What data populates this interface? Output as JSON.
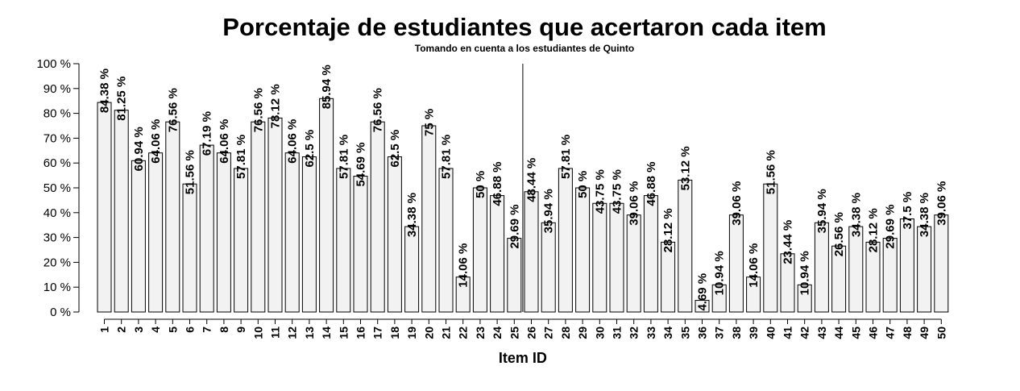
{
  "chart_data": {
    "type": "bar",
    "title": "Porcentaje de estudiantes que acertaron cada item",
    "subtitle": "Tomando en cuenta a los estudiantes de Quinto",
    "xlabel": "Item ID",
    "ylabel": "",
    "ylim": [
      0,
      100
    ],
    "yticks": [
      "0 %",
      "10 %",
      "20 %",
      "30 %",
      "40 %",
      "50 %",
      "60 %",
      "70 %",
      "80 %",
      "90 %",
      "100 %"
    ],
    "categories": [
      "1",
      "2",
      "3",
      "4",
      "5",
      "6",
      "7",
      "8",
      "9",
      "10",
      "11",
      "12",
      "13",
      "14",
      "15",
      "16",
      "17",
      "18",
      "19",
      "20",
      "21",
      "22",
      "23",
      "24",
      "25",
      "26",
      "27",
      "28",
      "29",
      "30",
      "31",
      "32",
      "33",
      "34",
      "35",
      "36",
      "37",
      "38",
      "39",
      "40",
      "41",
      "42",
      "43",
      "44",
      "45",
      "46",
      "47",
      "48",
      "49",
      "50"
    ],
    "values": [
      84.38,
      81.25,
      60.94,
      64.06,
      76.56,
      51.56,
      67.19,
      64.06,
      57.81,
      76.56,
      78.12,
      64.06,
      62.5,
      85.94,
      57.81,
      54.69,
      76.56,
      62.5,
      34.38,
      75,
      57.81,
      14.06,
      50,
      46.88,
      29.69,
      48.44,
      35.94,
      57.81,
      50,
      43.75,
      43.75,
      39.06,
      46.88,
      28.12,
      53.12,
      4.69,
      10.94,
      39.06,
      14.06,
      51.56,
      23.44,
      10.94,
      35.94,
      26.56,
      34.38,
      28.12,
      29.69,
      37.5,
      34.38,
      39.06
    ],
    "data_labels": [
      "84.38 %",
      "81.25 %",
      "60.94 %",
      "64.06 %",
      "76.56 %",
      "51.56 %",
      "67.19 %",
      "64.06 %",
      "57.81 %",
      "76.56 %",
      "78.12 %",
      "64.06 %",
      "62.5 %",
      "85.94 %",
      "57.81 %",
      "54.69 %",
      "76.56 %",
      "62.5 %",
      "34.38 %",
      "75 %",
      "57.81 %",
      "14.06 %",
      "50 %",
      "46.88 %",
      "29.69 %",
      "48.44 %",
      "35.94 %",
      "57.81 %",
      "50 %",
      "43.75 %",
      "43.75 %",
      "39.06 %",
      "46.88 %",
      "28.12 %",
      "53.12 %",
      "4.69 %",
      "10.94 %",
      "39.06 %",
      "14.06 %",
      "51.56 %",
      "23.44 %",
      "10.94 %",
      "35.94 %",
      "26.56 %",
      "34.38 %",
      "28.12 %",
      "29.69 %",
      "37.5 %",
      "34.38 %",
      "39.06 %"
    ],
    "reference_line_between": [
      "25",
      "26"
    ],
    "bar_color": "#f2f2f2",
    "grid": false,
    "legend": "none"
  }
}
